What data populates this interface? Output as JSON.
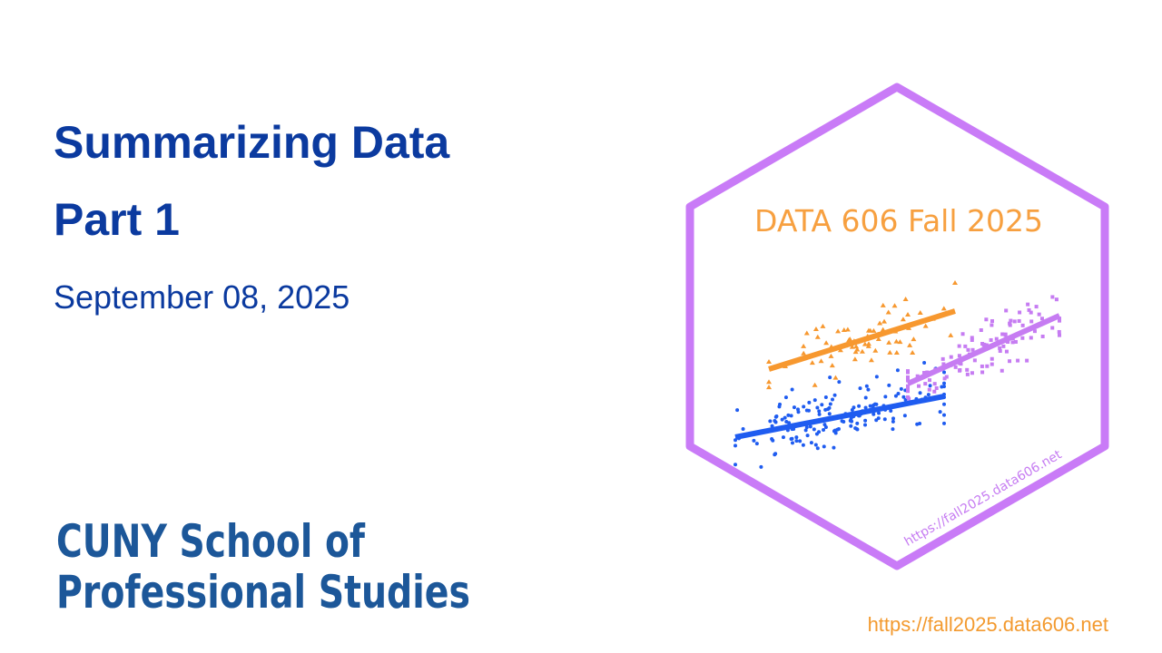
{
  "slide": {
    "title": [
      "Summarizing Data",
      "Part 1"
    ],
    "date": "September 08, 2025",
    "logo": [
      "CUNY School of",
      "Professional Studies"
    ],
    "url": "https://fall2025.data606.net"
  },
  "sticker": {
    "title": "DATA 606 Fall 2025",
    "url": "https://fall2025.data606.net"
  }
}
